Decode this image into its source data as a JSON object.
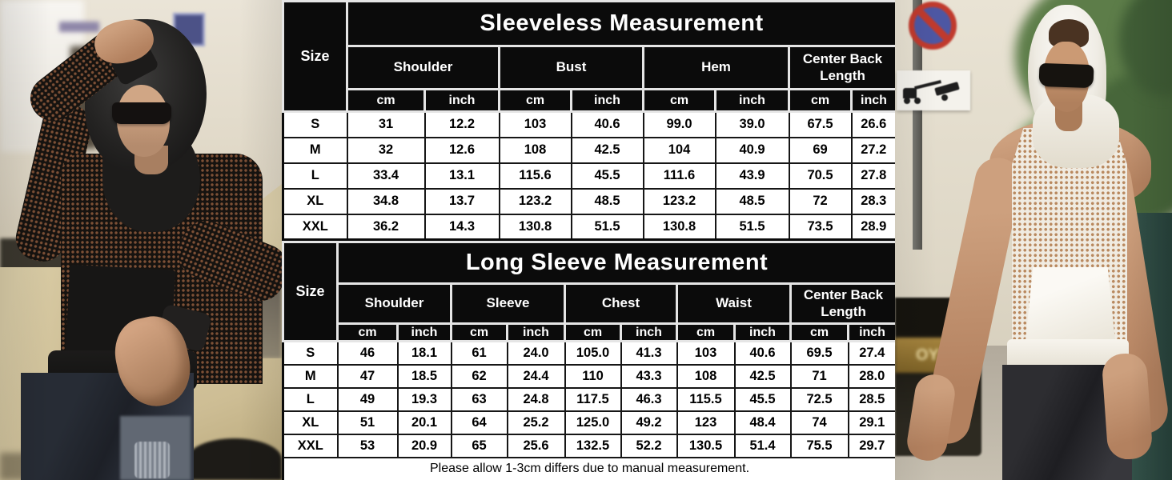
{
  "colors": {
    "header_bg": "#0b0b0b",
    "cell_bg": "#ffffff",
    "text": "#000000",
    "header_text": "#ffffff"
  },
  "footer_note": "Please allow 1-3cm differs due to manual measurement.",
  "photos": {
    "right": {
      "car_grille_text": "OY"
    }
  },
  "sleeveless": {
    "title": "Sleeveless Measurement",
    "size_label": "Size",
    "groups": [
      "Shoulder",
      "Bust",
      "Hem",
      "Center Back Length"
    ],
    "units": [
      "cm",
      "inch"
    ],
    "rows": [
      {
        "size": "S",
        "values": [
          "31",
          "12.2",
          "103",
          "40.6",
          "99.0",
          "39.0",
          "67.5",
          "26.6"
        ]
      },
      {
        "size": "M",
        "values": [
          "32",
          "12.6",
          "108",
          "42.5",
          "104",
          "40.9",
          "69",
          "27.2"
        ]
      },
      {
        "size": "L",
        "values": [
          "33.4",
          "13.1",
          "115.6",
          "45.5",
          "111.6",
          "43.9",
          "70.5",
          "27.8"
        ]
      },
      {
        "size": "XL",
        "values": [
          "34.8",
          "13.7",
          "123.2",
          "48.5",
          "123.2",
          "48.5",
          "72",
          "28.3"
        ]
      },
      {
        "size": "XXL",
        "values": [
          "36.2",
          "14.3",
          "130.8",
          "51.5",
          "130.8",
          "51.5",
          "73.5",
          "28.9"
        ]
      }
    ]
  },
  "long_sleeve": {
    "title": "Long Sleeve Measurement",
    "size_label": "Size",
    "groups": [
      "Shoulder",
      "Sleeve",
      "Chest",
      "Waist",
      "Center Back Length"
    ],
    "units": [
      "cm",
      "inch"
    ],
    "rows": [
      {
        "size": "S",
        "values": [
          "46",
          "18.1",
          "61",
          "24.0",
          "105.0",
          "41.3",
          "103",
          "40.6",
          "69.5",
          "27.4"
        ]
      },
      {
        "size": "M",
        "values": [
          "47",
          "18.5",
          "62",
          "24.4",
          "110",
          "43.3",
          "108",
          "42.5",
          "71",
          "28.0"
        ]
      },
      {
        "size": "L",
        "values": [
          "49",
          "19.3",
          "63",
          "24.8",
          "117.5",
          "46.3",
          "115.5",
          "45.5",
          "72.5",
          "28.5"
        ]
      },
      {
        "size": "XL",
        "values": [
          "51",
          "20.1",
          "64",
          "25.2",
          "125.0",
          "49.2",
          "123",
          "48.4",
          "74",
          "29.1"
        ]
      },
      {
        "size": "XXL",
        "values": [
          "53",
          "20.9",
          "65",
          "25.6",
          "132.5",
          "52.2",
          "130.5",
          "51.4",
          "75.5",
          "29.7"
        ]
      }
    ]
  }
}
